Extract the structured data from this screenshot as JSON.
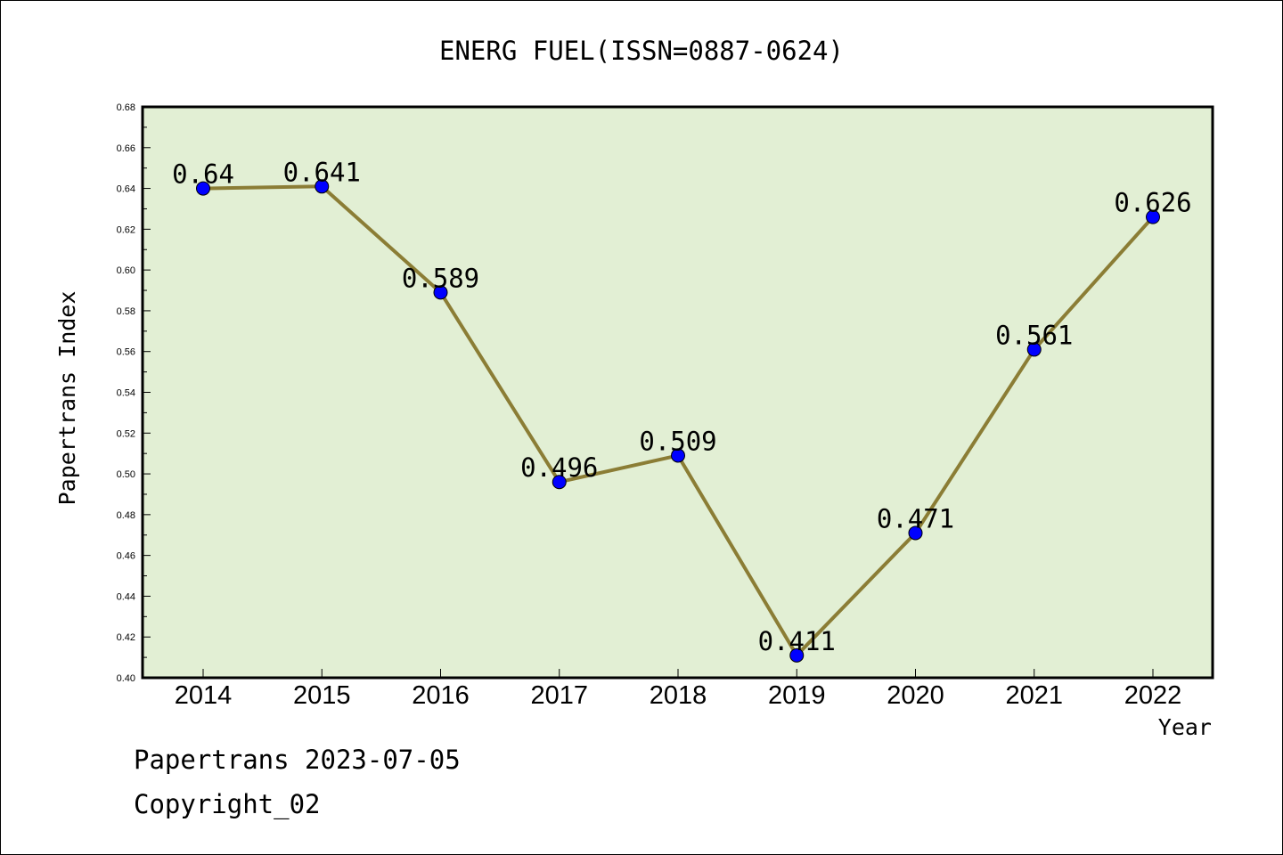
{
  "chart_data": {
    "type": "line",
    "title": "ENERG FUEL(ISSN=0887-0624)",
    "xlabel": "Year",
    "ylabel": "Papertrans Index",
    "categories": [
      "2014",
      "2015",
      "2016",
      "2017",
      "2018",
      "2019",
      "2020",
      "2021",
      "2022"
    ],
    "values": [
      0.64,
      0.641,
      0.589,
      0.496,
      0.509,
      0.411,
      0.471,
      0.561,
      0.626
    ],
    "data_labels": [
      "0.64",
      "0.641",
      "0.589",
      "0.496",
      "0.509",
      "0.411",
      "0.471",
      "0.561",
      "0.626"
    ],
    "ylim": [
      0.4,
      0.68
    ],
    "y_ticks": [
      "0.40",
      "0.42",
      "0.44",
      "0.46",
      "0.48",
      "0.50",
      "0.52",
      "0.54",
      "0.56",
      "0.58",
      "0.60",
      "0.62",
      "0.64",
      "0.66",
      "0.68"
    ],
    "grid": false,
    "colors": {
      "plot_background": "#e2efd4",
      "line": "#8b7d35",
      "marker": "#0000ff"
    }
  },
  "footer": {
    "line1": "Papertrans 2023-07-05",
    "line2": "Copyright_02"
  }
}
